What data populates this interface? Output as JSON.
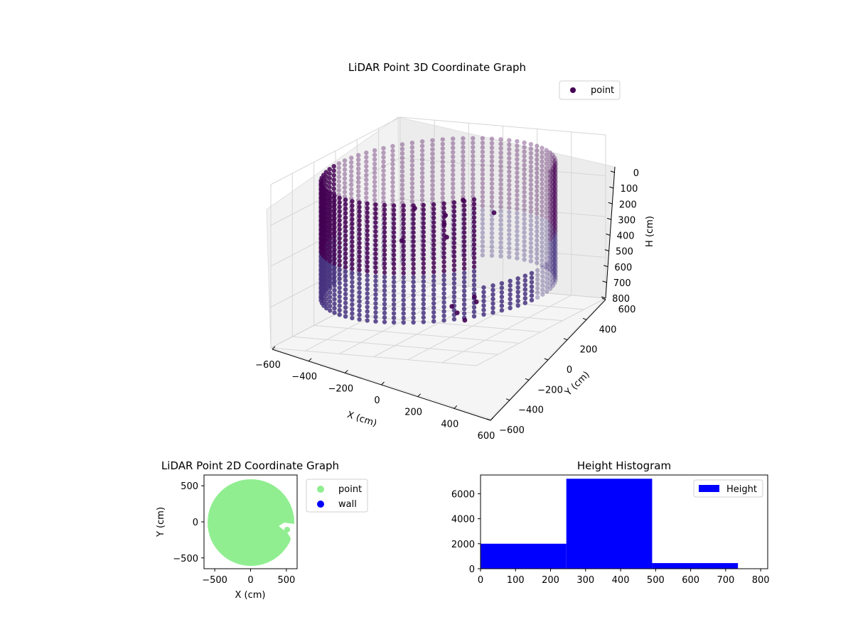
{
  "chart_data": [
    {
      "type": "scatter",
      "title": "LiDAR Point 3D Coordinate Graph",
      "xlabel": "X (cm)",
      "ylabel": "Y (cm)",
      "zlabel": "H (cm)",
      "xlim": [
        -600,
        600
      ],
      "ylim": [
        -600,
        600
      ],
      "zlim": [
        0,
        800
      ],
      "z_inverted": true,
      "xticks": [
        "−600",
        "−400",
        "−200",
        "0",
        "200",
        "400",
        "600"
      ],
      "yticks": [
        "−600",
        "−400",
        "−200",
        "0",
        "200",
        "400",
        "600"
      ],
      "zticks": [
        "0",
        "100",
        "200",
        "300",
        "400",
        "500",
        "600",
        "700",
        "800"
      ],
      "legend": {
        "label": "point",
        "placement": "top-right"
      },
      "colormap": "viridis (dark purple)",
      "description_series": {
        "ring_radius_cm": 580,
        "height_range_cm": [
          60,
          650
        ],
        "opening_angle_deg": [
          -40,
          15
        ]
      },
      "colors": {
        "point": "#440154",
        "mid": "#46337f",
        "pane": "#f2f2f2",
        "grid": "#d0d0d0"
      }
    },
    {
      "type": "scatter",
      "title": "LiDAR Point 2D Coordinate Graph",
      "xlabel": "X (cm)",
      "ylabel": "Y (cm)",
      "xlim": [
        -650,
        650
      ],
      "ylim": [
        -650,
        650
      ],
      "xticks": [
        "−500",
        "0",
        "500"
      ],
      "yticks": [
        "500",
        "0",
        "−500"
      ],
      "series": [
        {
          "name": "point",
          "color": "#90ee90"
        },
        {
          "name": "wall",
          "color": "#0000ff"
        }
      ],
      "legend_placement": "outside-right"
    },
    {
      "type": "bar",
      "title": "Height Histogram",
      "xlim": [
        0,
        820
      ],
      "ylim": [
        0,
        7500
      ],
      "xticks": [
        "0",
        "100",
        "200",
        "300",
        "400",
        "500",
        "600",
        "700",
        "800"
      ],
      "yticks": [
        "0",
        "2000",
        "4000",
        "6000"
      ],
      "bins": [
        {
          "x0": 0,
          "x1": 245,
          "count": 2000
        },
        {
          "x0": 245,
          "x1": 490,
          "count": 7200
        },
        {
          "x0": 490,
          "x1": 735,
          "count": 450
        }
      ],
      "series": [
        {
          "name": "Height",
          "color": "#0000ff"
        }
      ],
      "legend_placement": "top-right"
    }
  ]
}
